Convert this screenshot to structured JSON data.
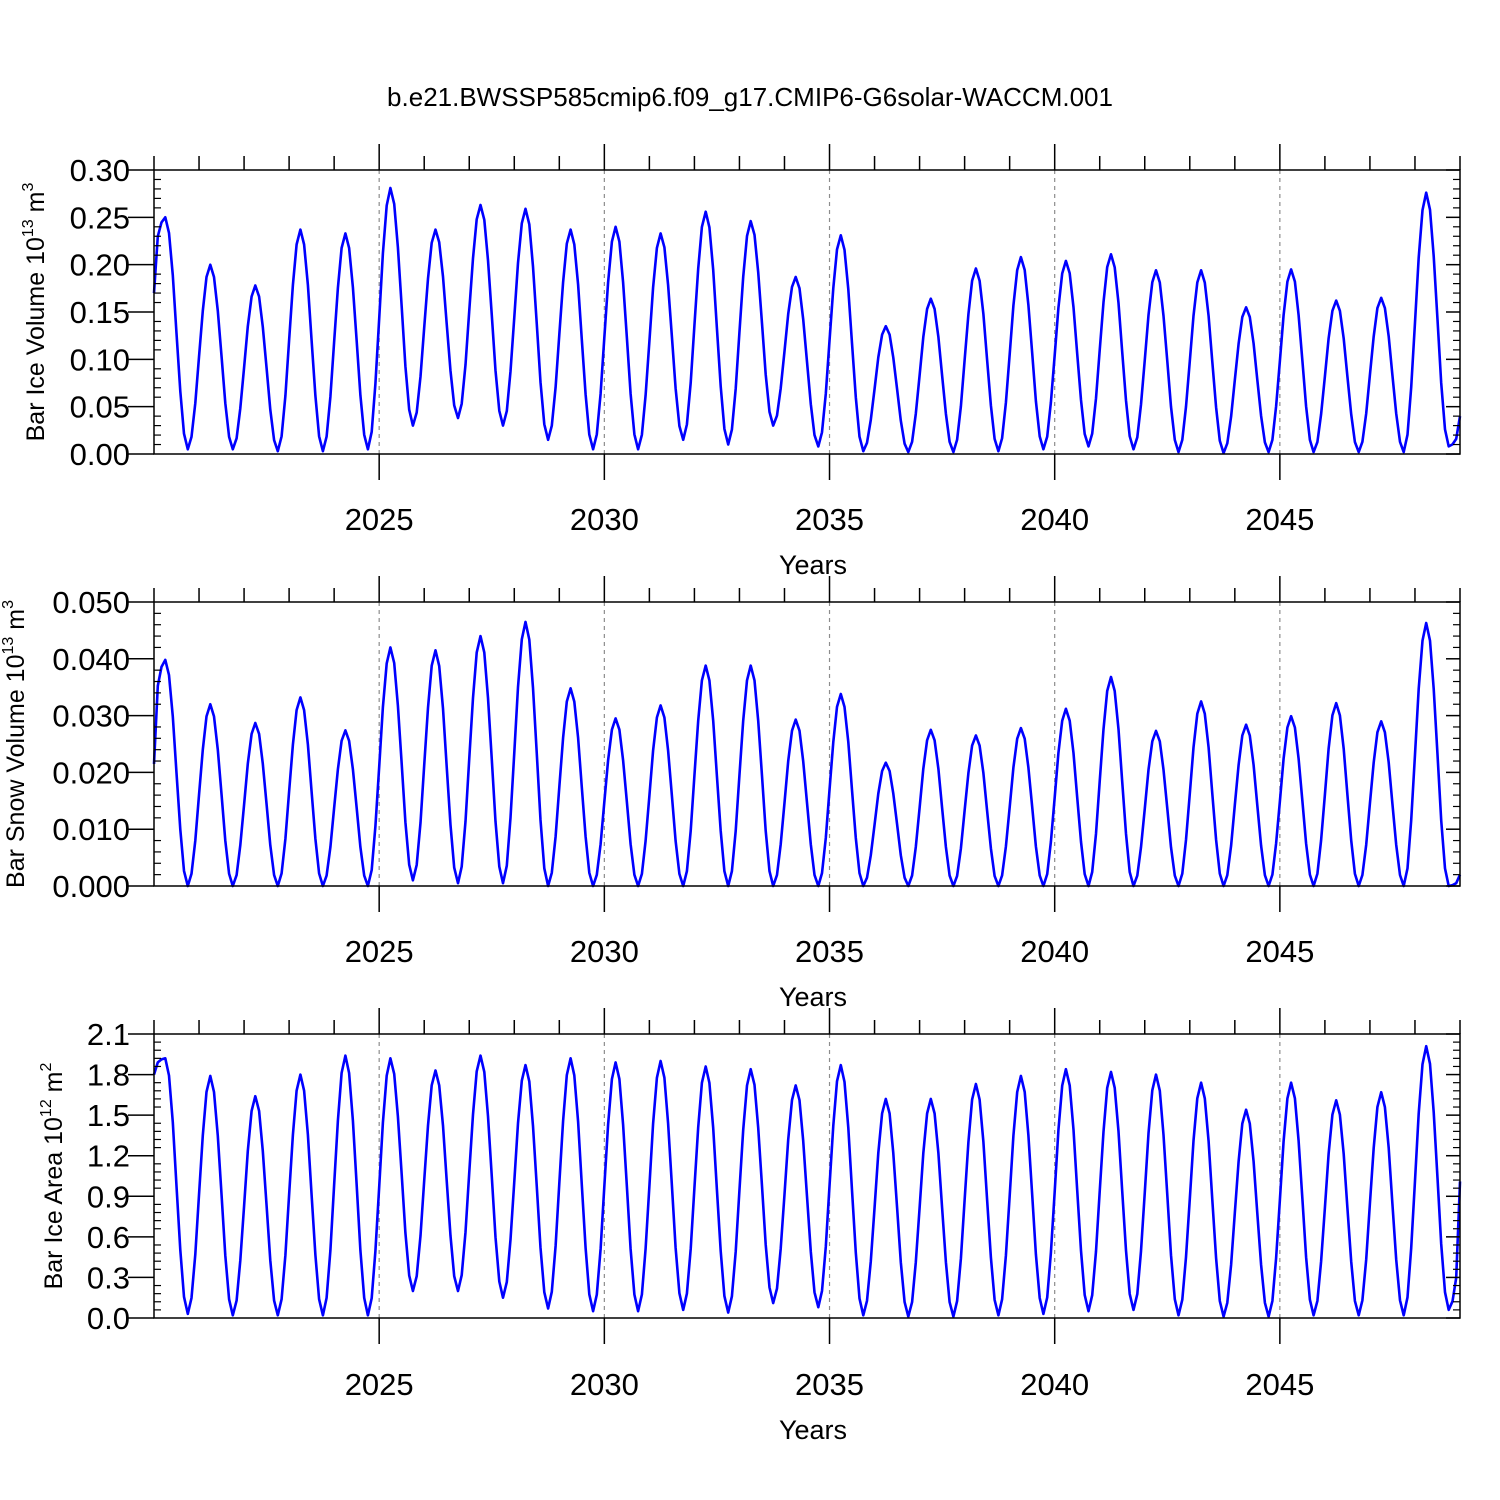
{
  "title": "b.e21.BWSSP585cmip6.f09_g17.CMIP6-G6solar-WACCM.001",
  "colors": {
    "series": "#0000ff",
    "axis": "#000000",
    "grid": "#8c8c8c"
  },
  "chart_data": [
    {
      "type": "line",
      "ylabel_main": "Bar Ice Volume 10",
      "ylabel_exp": "13",
      "ylabel_unit": " m",
      "ylabel_unit_exp": "3",
      "xlabel": "Years",
      "xlim": [
        2020.0,
        2049.0
      ],
      "ylim": [
        0.0,
        0.3
      ],
      "xticks": [
        2025,
        2030,
        2035,
        2040,
        2045
      ],
      "xtick_labels": [
        "2025",
        "2030",
        "2035",
        "2040",
        "2045"
      ],
      "yticks": [
        0.0,
        0.05,
        0.1,
        0.15,
        0.2,
        0.25,
        0.3
      ],
      "ytick_labels": [
        "0.00",
        "0.05",
        "0.10",
        "0.15",
        "0.20",
        "0.25",
        "0.30"
      ],
      "vgrid": [
        2025,
        2030,
        2035,
        2040,
        2045
      ],
      "peaks": [
        0.25,
        0.2,
        0.178,
        0.237,
        0.233,
        0.281,
        0.237,
        0.263,
        0.259,
        0.237,
        0.24,
        0.233,
        0.256,
        0.246,
        0.187,
        0.231,
        0.135,
        0.164,
        0.196,
        0.208,
        0.204,
        0.211,
        0.194,
        0.194,
        0.155,
        0.195,
        0.162,
        0.165,
        0.276
      ],
      "troughs": [
        0.005,
        0.005,
        0.003,
        0.003,
        0.005,
        0.03,
        0.038,
        0.03,
        0.015,
        0.005,
        0.005,
        0.015,
        0.01,
        0.03,
        0.008,
        0.003,
        0.002,
        0.002,
        0.003,
        0.005,
        0.008,
        0.005,
        0.002,
        0.001,
        0.002,
        0.002,
        0.002,
        0.002,
        0.008
      ],
      "start_value": 0.17,
      "end_value": 0.04
    },
    {
      "type": "line",
      "ylabel_main": "Bar Snow Volume 10",
      "ylabel_exp": "13",
      "ylabel_unit": " m",
      "ylabel_unit_exp": "3",
      "xlabel": "Years",
      "xlim": [
        2020.0,
        2049.0
      ],
      "ylim": [
        0.0,
        0.05
      ],
      "xticks": [
        2025,
        2030,
        2035,
        2040,
        2045
      ],
      "xtick_labels": [
        "2025",
        "2030",
        "2035",
        "2040",
        "2045"
      ],
      "yticks": [
        0.0,
        0.01,
        0.02,
        0.03,
        0.04,
        0.05
      ],
      "ytick_labels": [
        "0.000",
        "0.010",
        "0.020",
        "0.030",
        "0.040",
        "0.050"
      ],
      "vgrid": [
        2025,
        2030,
        2035,
        2040,
        2045
      ],
      "peaks": [
        0.0398,
        0.032,
        0.0287,
        0.0332,
        0.0274,
        0.042,
        0.0415,
        0.044,
        0.0465,
        0.0348,
        0.0295,
        0.0318,
        0.0388,
        0.0388,
        0.0293,
        0.0338,
        0.0217,
        0.0275,
        0.0265,
        0.0278,
        0.0312,
        0.0368,
        0.0273,
        0.0325,
        0.0284,
        0.0299,
        0.0322,
        0.029,
        0.0463
      ],
      "troughs": [
        0.0,
        0.0,
        0.0,
        0.0,
        0.0,
        0.001,
        0.0005,
        0.0005,
        0.0,
        0.0,
        0.0,
        0.0,
        0.0,
        0.0,
        0.0,
        0.0,
        0.0,
        0.0,
        0.0,
        0.0,
        0.0,
        0.0,
        0.0,
        0.0,
        0.0,
        0.0,
        0.0,
        0.0,
        0.0
      ],
      "start_value": 0.0215,
      "end_value": 0.002
    },
    {
      "type": "line",
      "ylabel_main": "Bar Ice Area 10",
      "ylabel_exp": "12",
      "ylabel_unit": " m",
      "ylabel_unit_exp": "2",
      "xlabel": "Years",
      "xlim": [
        2020.0,
        2049.0
      ],
      "ylim": [
        0.0,
        2.1
      ],
      "xticks": [
        2025,
        2030,
        2035,
        2040,
        2045
      ],
      "xtick_labels": [
        "2025",
        "2030",
        "2035",
        "2040",
        "2045"
      ],
      "yticks": [
        0.0,
        0.3,
        0.6,
        0.9,
        1.2,
        1.5,
        1.8,
        2.1
      ],
      "ytick_labels": [
        "0.0",
        "0.3",
        "0.6",
        "0.9",
        "1.2",
        "1.5",
        "1.8",
        "2.1"
      ],
      "vgrid": [
        2025,
        2030,
        2035,
        2040,
        2045
      ],
      "peaks": [
        1.92,
        1.79,
        1.64,
        1.8,
        1.94,
        1.92,
        1.83,
        1.94,
        1.87,
        1.92,
        1.89,
        1.9,
        1.86,
        1.84,
        1.72,
        1.87,
        1.62,
        1.62,
        1.73,
        1.79,
        1.84,
        1.82,
        1.8,
        1.74,
        1.54,
        1.74,
        1.61,
        1.67,
        2.01
      ],
      "troughs": [
        0.03,
        0.02,
        0.02,
        0.02,
        0.02,
        0.2,
        0.2,
        0.15,
        0.07,
        0.05,
        0.05,
        0.06,
        0.04,
        0.11,
        0.08,
        0.02,
        0.01,
        0.01,
        0.02,
        0.03,
        0.05,
        0.06,
        0.02,
        0.01,
        0.01,
        0.02,
        0.02,
        0.02,
        0.06
      ],
      "start_value": 1.8,
      "end_value": 1.01
    }
  ]
}
